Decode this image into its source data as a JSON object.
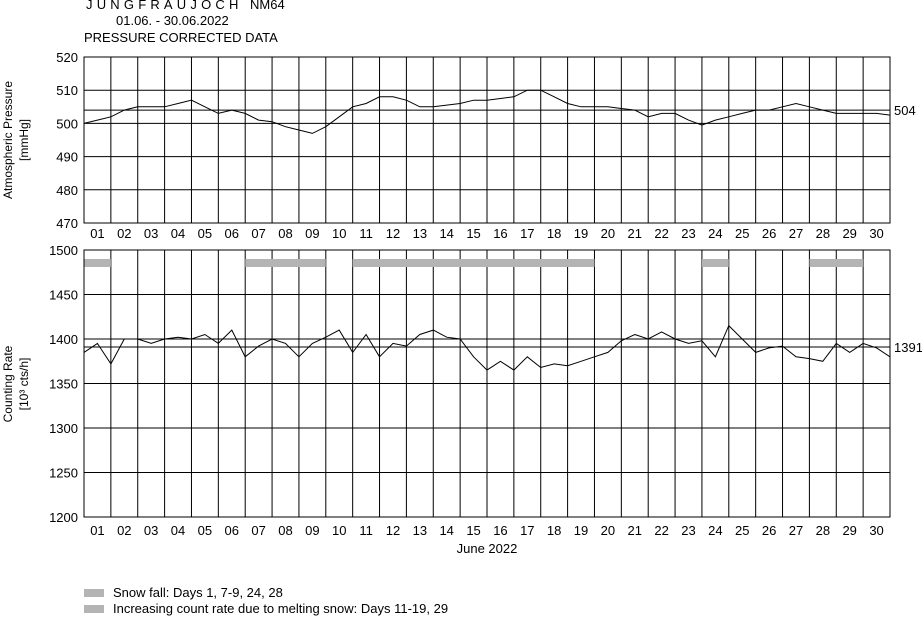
{
  "header": {
    "station": "JUNGFRAUJOCH",
    "monitor": "NM64",
    "date_range": "01.06. - 30.06.2022",
    "subtitle": "PRESSURE CORRECTED DATA"
  },
  "xlabel": "June 2022",
  "days": [
    "01",
    "02",
    "03",
    "04",
    "05",
    "06",
    "07",
    "08",
    "09",
    "10",
    "11",
    "12",
    "13",
    "14",
    "15",
    "16",
    "17",
    "18",
    "19",
    "20",
    "21",
    "22",
    "23",
    "24",
    "25",
    "26",
    "27",
    "28",
    "29",
    "30"
  ],
  "legend": [
    {
      "label": "Snow fall: Days 1, 7-9, 24, 28",
      "color": "#b4b4b4"
    },
    {
      "label": "Increasing count rate due to melting snow: Days 11-19, 29",
      "color": "#b4b4b4"
    }
  ],
  "colors": {
    "line": "#000000",
    "grid": "#000000",
    "band": "#b4b4b4"
  },
  "chart_data": [
    {
      "type": "line",
      "ylabel": "Atmospheric Pressure",
      "yunit": "[mmHg]",
      "ylim": [
        470,
        520
      ],
      "yticks": [
        470,
        480,
        490,
        500,
        510,
        520
      ],
      "xlim": [
        1,
        31
      ],
      "mean_value": 504,
      "mean_label": "504",
      "grid": true,
      "series": [
        {
          "x": [
            1.0,
            1.5,
            2.0,
            2.5,
            3.0,
            3.5,
            4.0,
            4.5,
            5.0,
            5.5,
            6.0,
            6.5,
            7.0,
            7.5,
            8.0,
            8.5,
            9.0,
            9.5,
            10.0,
            10.5,
            11.0,
            11.5,
            12.0,
            12.5,
            13.0,
            13.5,
            14.0,
            14.5,
            15.0,
            15.5,
            16.0,
            16.5,
            17.0,
            17.5,
            18.0,
            18.5,
            19.0,
            19.5,
            20.0,
            20.5,
            21.0,
            21.5,
            22.0,
            22.5,
            23.0,
            23.5,
            24.0,
            24.5,
            25.0,
            25.5,
            26.0,
            26.5,
            27.0,
            27.5,
            28.0,
            28.5,
            29.0,
            29.5,
            30.0,
            30.5,
            31.0
          ],
          "values": [
            500,
            501,
            502,
            504,
            505,
            505,
            505,
            506,
            507,
            505,
            503,
            504,
            503,
            501,
            500.5,
            499,
            498,
            497,
            499,
            502,
            505,
            506,
            508,
            508,
            507,
            505,
            505,
            505.5,
            506,
            507,
            507,
            507.5,
            508,
            510,
            510,
            508,
            506,
            505,
            505,
            505,
            504.5,
            504,
            502,
            503,
            503,
            501,
            499.5,
            501,
            502,
            503,
            504,
            504,
            505,
            506,
            505,
            504,
            503,
            503,
            503,
            503,
            502.5
          ]
        }
      ]
    },
    {
      "type": "line",
      "ylabel": "Counting Rate",
      "yunit": "[10³ cts/h]",
      "ylim": [
        1200,
        1500
      ],
      "yticks": [
        1200,
        1250,
        1300,
        1350,
        1400,
        1450,
        1500
      ],
      "xlim": [
        1,
        31
      ],
      "mean_value": 1391,
      "mean_label": "1391",
      "grid": true,
      "bands": [
        {
          "x0": 1,
          "x1": 2
        },
        {
          "x0": 7,
          "x1": 10
        },
        {
          "x0": 11,
          "x1": 20
        },
        {
          "x0": 24,
          "x1": 25
        },
        {
          "x0": 28,
          "x1": 30
        }
      ],
      "series": [
        {
          "x": [
            1.0,
            1.5,
            2.0,
            2.5,
            3.0,
            3.5,
            4.0,
            4.5,
            5.0,
            5.5,
            6.0,
            6.5,
            7.0,
            7.5,
            8.0,
            8.5,
            9.0,
            9.5,
            10.0,
            10.5,
            11.0,
            11.5,
            12.0,
            12.5,
            13.0,
            13.5,
            14.0,
            14.5,
            15.0,
            15.5,
            16.0,
            16.5,
            17.0,
            17.5,
            18.0,
            18.5,
            19.0,
            19.5,
            20.0,
            20.5,
            21.0,
            21.5,
            22.0,
            22.5,
            23.0,
            23.5,
            24.0,
            24.5,
            25.0,
            25.5,
            26.0,
            26.5,
            27.0,
            27.5,
            28.0,
            28.5,
            29.0,
            29.5,
            30.0,
            30.5,
            31.0
          ],
          "values": [
            1385,
            1395,
            1372,
            1400,
            1400,
            1395,
            1400,
            1402,
            1400,
            1405,
            1395,
            1410,
            1380,
            1392,
            1400,
            1395,
            1380,
            1395,
            1402,
            1410,
            1385,
            1405,
            1380,
            1395,
            1392,
            1405,
            1410,
            1402,
            1400,
            1380,
            1365,
            1375,
            1365,
            1380,
            1368,
            1372,
            1370,
            1375,
            1380,
            1385,
            1398,
            1405,
            1400,
            1408,
            1400,
            1395,
            1398,
            1380,
            1415,
            1400,
            1385,
            1390,
            1392,
            1380,
            1378,
            1375,
            1395,
            1385,
            1395,
            1390,
            1380
          ]
        }
      ]
    }
  ]
}
